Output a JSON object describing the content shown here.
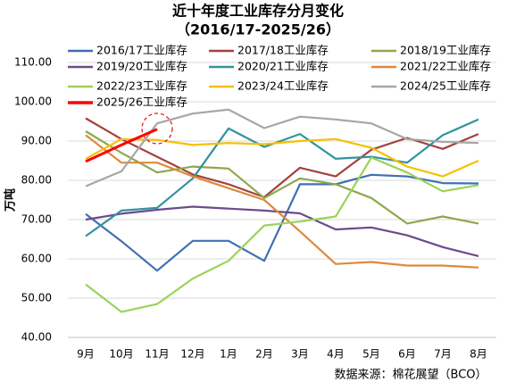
{
  "chart_data": {
    "type": "line",
    "title": "近十年度工业库存分月变化",
    "subtitle": "（2016/17-2025/26）",
    "y_label": "万吨",
    "source": "数据来源：棉花展望（BCO）",
    "categories": [
      "9月",
      "10月",
      "11月",
      "12月",
      "1月",
      "2月",
      "3月",
      "4月",
      "5月",
      "6月",
      "7月",
      "8月"
    ],
    "ylim": [
      40,
      110
    ],
    "yticks": [
      {
        "value": 40,
        "label": "40.00"
      },
      {
        "value": 50,
        "label": "50.00"
      },
      {
        "value": 60,
        "label": "60.00"
      },
      {
        "value": 70,
        "label": "70.00"
      },
      {
        "value": 80,
        "label": "80.00"
      },
      {
        "value": 90,
        "label": "90.00"
      },
      {
        "value": 100,
        "label": "100.00"
      },
      {
        "value": 110,
        "label": "110.00"
      }
    ],
    "grid": true,
    "series": [
      {
        "name": "2016/17工业库存",
        "color": "#3f6fb5",
        "values": [
          71.4,
          64.5,
          57,
          64.6,
          64.6,
          59.5,
          79,
          79,
          81.4,
          81,
          79.3,
          79.2
        ]
      },
      {
        "name": "2017/18工业库存",
        "color": "#a3413d",
        "values": [
          95.8,
          90.5,
          86,
          81.5,
          79,
          75.7,
          83.2,
          81,
          87.8,
          90.8,
          88,
          91.8
        ]
      },
      {
        "name": "2018/19工业库存",
        "color": "#8ea84b",
        "values": [
          92.5,
          87,
          82,
          83.5,
          83,
          75.5,
          80.5,
          79,
          75.5,
          69,
          70.8,
          69
        ]
      },
      {
        "name": "2019/20工业库存",
        "color": "#6c4a8c",
        "values": [
          70,
          71.5,
          72.5,
          73.3,
          72.8,
          72.3,
          71.6,
          67.5,
          68,
          66,
          63,
          60.7
        ]
      },
      {
        "name": "2020/21工业库存",
        "color": "#3292a0",
        "values": [
          65.8,
          72.3,
          73,
          80.5,
          93.2,
          88.5,
          91.8,
          85.5,
          86,
          84.5,
          91.5,
          95.5
        ]
      },
      {
        "name": "2021/22工业库存",
        "color": "#dc8a3c",
        "values": [
          91.5,
          84.5,
          84.5,
          81,
          78,
          75,
          67,
          58.7,
          59.2,
          58.3,
          58.3,
          57.8
        ]
      },
      {
        "name": "2022/23工业库存",
        "color": "#9bd25a",
        "values": [
          53.5,
          46.5,
          48.5,
          55,
          59.5,
          68.5,
          69.5,
          70.8,
          85.8,
          82,
          77.2,
          78.8
        ]
      },
      {
        "name": "2023/24工业库存",
        "color": "#f5c100",
        "values": [
          85.5,
          90.5,
          90.3,
          89,
          89.5,
          89.2,
          90,
          90.5,
          88.3,
          83.5,
          81,
          85
        ]
      },
      {
        "name": "2024/25工业库存",
        "color": "#a6a6a6",
        "values": [
          78.5,
          82.3,
          94.5,
          97,
          98,
          93.3,
          96.2,
          95.5,
          94.5,
          90.5,
          89.8,
          89.5
        ]
      },
      {
        "name": "2025/26工业库存",
        "color": "#ff0000",
        "values": [
          84.8,
          89,
          93,
          null,
          null,
          null,
          null,
          null,
          null,
          null,
          null,
          null
        ]
      }
    ]
  }
}
